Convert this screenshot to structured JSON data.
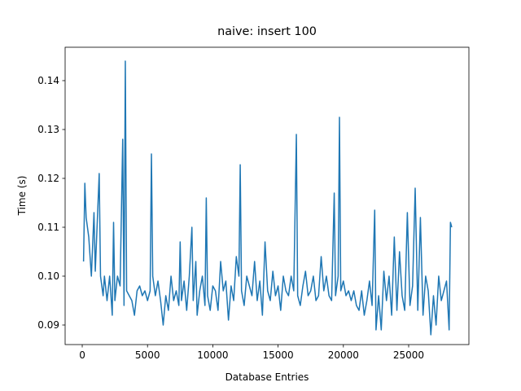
{
  "chart_data": {
    "type": "line",
    "title": "naive: insert 100",
    "x_label": "Database Entries",
    "y_label": "Time (s)",
    "color": "#1f77b4",
    "x": [
      100,
      200,
      300,
      500,
      700,
      900,
      1000,
      1300,
      1400,
      1600,
      1700,
      1900,
      2100,
      2300,
      2400,
      2500,
      2700,
      2900,
      3100,
      3200,
      3300,
      3400,
      3600,
      3800,
      4000,
      4200,
      4400,
      4600,
      4800,
      5000,
      5200,
      5300,
      5400,
      5600,
      5800,
      6000,
      6200,
      6400,
      6600,
      6800,
      7000,
      7200,
      7400,
      7500,
      7600,
      7800,
      8000,
      8200,
      8400,
      8500,
      8700,
      8800,
      9000,
      9200,
      9400,
      9500,
      9600,
      9800,
      10000,
      10200,
      10400,
      10600,
      10800,
      11000,
      11200,
      11400,
      11600,
      11800,
      12000,
      12100,
      12200,
      12400,
      12600,
      12800,
      13000,
      13200,
      13400,
      13600,
      13800,
      14000,
      14200,
      14400,
      14600,
      14800,
      15000,
      15200,
      15400,
      15600,
      15800,
      16000,
      16200,
      16400,
      16500,
      16700,
      16900,
      17100,
      17300,
      17500,
      17700,
      17900,
      18100,
      18300,
      18500,
      18700,
      18900,
      19100,
      19300,
      19400,
      19600,
      19700,
      19800,
      20000,
      20200,
      20400,
      20600,
      20800,
      21000,
      21200,
      21400,
      21600,
      21800,
      22000,
      22200,
      22400,
      22500,
      22700,
      22900,
      23100,
      23300,
      23500,
      23700,
      23900,
      24100,
      24300,
      24500,
      24700,
      24900,
      25100,
      25300,
      25500,
      25700,
      25900,
      26100,
      26300,
      26500,
      26700,
      26900,
      27100,
      27300,
      27500,
      27700,
      27900,
      28100,
      28200,
      28300
    ],
    "values": [
      0.103,
      0.119,
      0.112,
      0.108,
      0.1,
      0.113,
      0.101,
      0.121,
      0.1,
      0.096,
      0.1,
      0.095,
      0.1,
      0.092,
      0.111,
      0.095,
      0.1,
      0.098,
      0.128,
      0.094,
      0.144,
      0.097,
      0.096,
      0.095,
      0.092,
      0.097,
      0.098,
      0.096,
      0.097,
      0.095,
      0.097,
      0.125,
      0.1,
      0.096,
      0.099,
      0.095,
      0.09,
      0.096,
      0.093,
      0.1,
      0.095,
      0.097,
      0.094,
      0.107,
      0.095,
      0.099,
      0.093,
      0.1,
      0.11,
      0.095,
      0.103,
      0.092,
      0.097,
      0.1,
      0.094,
      0.116,
      0.096,
      0.093,
      0.098,
      0.097,
      0.093,
      0.103,
      0.097,
      0.099,
      0.091,
      0.098,
      0.095,
      0.104,
      0.1,
      0.1228,
      0.097,
      0.094,
      0.1,
      0.098,
      0.096,
      0.103,
      0.095,
      0.099,
      0.092,
      0.107,
      0.097,
      0.095,
      0.101,
      0.096,
      0.098,
      0.093,
      0.1,
      0.097,
      0.096,
      0.1,
      0.097,
      0.129,
      0.096,
      0.094,
      0.098,
      0.101,
      0.096,
      0.097,
      0.1,
      0.095,
      0.096,
      0.104,
      0.097,
      0.1,
      0.096,
      0.095,
      0.117,
      0.096,
      0.1,
      0.1325,
      0.097,
      0.099,
      0.096,
      0.097,
      0.095,
      0.097,
      0.094,
      0.093,
      0.097,
      0.092,
      0.095,
      0.099,
      0.094,
      0.1135,
      0.089,
      0.096,
      0.089,
      0.101,
      0.095,
      0.1,
      0.092,
      0.108,
      0.093,
      0.105,
      0.096,
      0.093,
      0.113,
      0.094,
      0.098,
      0.118,
      0.093,
      0.112,
      0.092,
      0.1,
      0.097,
      0.088,
      0.096,
      0.09,
      0.1,
      0.095,
      0.097,
      0.099,
      0.089,
      0.111,
      0.11
    ],
    "xlim": [
      -1310,
      29614
    ],
    "ylim": [
      0.086,
      0.14683
    ],
    "xticks": [
      0,
      5000,
      10000,
      15000,
      20000,
      25000
    ],
    "yticks": [
      0.09,
      {
        "value": 0.1,
        "label": "0.10"
      },
      0.11,
      0.12,
      0.13,
      0.14
    ]
  }
}
